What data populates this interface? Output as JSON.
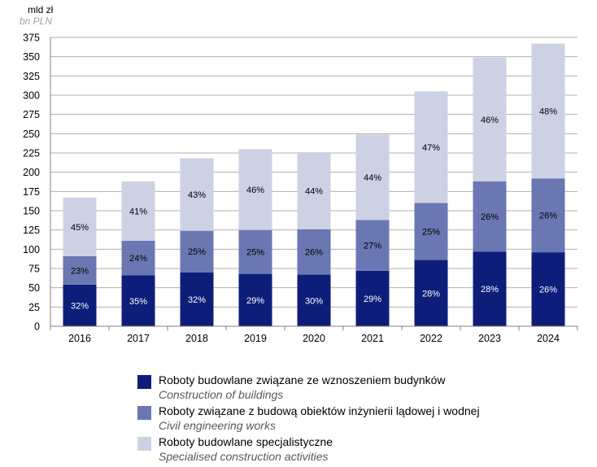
{
  "chart_data": {
    "type": "bar",
    "stacked": true,
    "unit_label": "mld zł",
    "unit_label_en": "bn PLN",
    "categories": [
      "2016",
      "2017",
      "2018",
      "2019",
      "2020",
      "2021",
      "2022",
      "2023",
      "2024"
    ],
    "series": [
      {
        "name": "Roboty budowlane związane ze wznoszeniem budynków",
        "name_en": "Construction of buildings",
        "color": "#0d1e7a",
        "label_color": "#ffffff",
        "values": [
          54,
          66,
          70,
          68,
          67,
          72,
          86,
          97,
          96
        ],
        "labels": [
          "32%",
          "35%",
          "32%",
          "29%",
          "30%",
          "29%",
          "28%",
          "28%",
          "26%"
        ]
      },
      {
        "name": "Roboty związane z budową obiektów inżynierii lądowej i wodnej",
        "name_en": "Civil engineering works",
        "color": "#6a77b3",
        "label_color": "#000000",
        "values": [
          37,
          45,
          54,
          57,
          59,
          66,
          74,
          91,
          96
        ],
        "labels": [
          "23%",
          "24%",
          "25%",
          "25%",
          "26%",
          "27%",
          "25%",
          "26%",
          "26%"
        ]
      },
      {
        "name": "Roboty budowlane specjalistyczne",
        "name_en": "Specialised construction activities",
        "color": "#cdd1e4",
        "label_color": "#000000",
        "values": [
          76,
          77,
          94,
          105,
          100,
          111,
          145,
          161,
          175
        ],
        "labels": [
          "45%",
          "41%",
          "43%",
          "46%",
          "44%",
          "44%",
          "47%",
          "46%",
          "48%"
        ]
      }
    ],
    "ylim": [
      0,
      375
    ],
    "yticks": [
      0,
      25,
      50,
      75,
      100,
      125,
      150,
      175,
      200,
      225,
      250,
      275,
      300,
      325,
      350,
      375
    ],
    "grid": true,
    "legend_position": "bottom"
  }
}
